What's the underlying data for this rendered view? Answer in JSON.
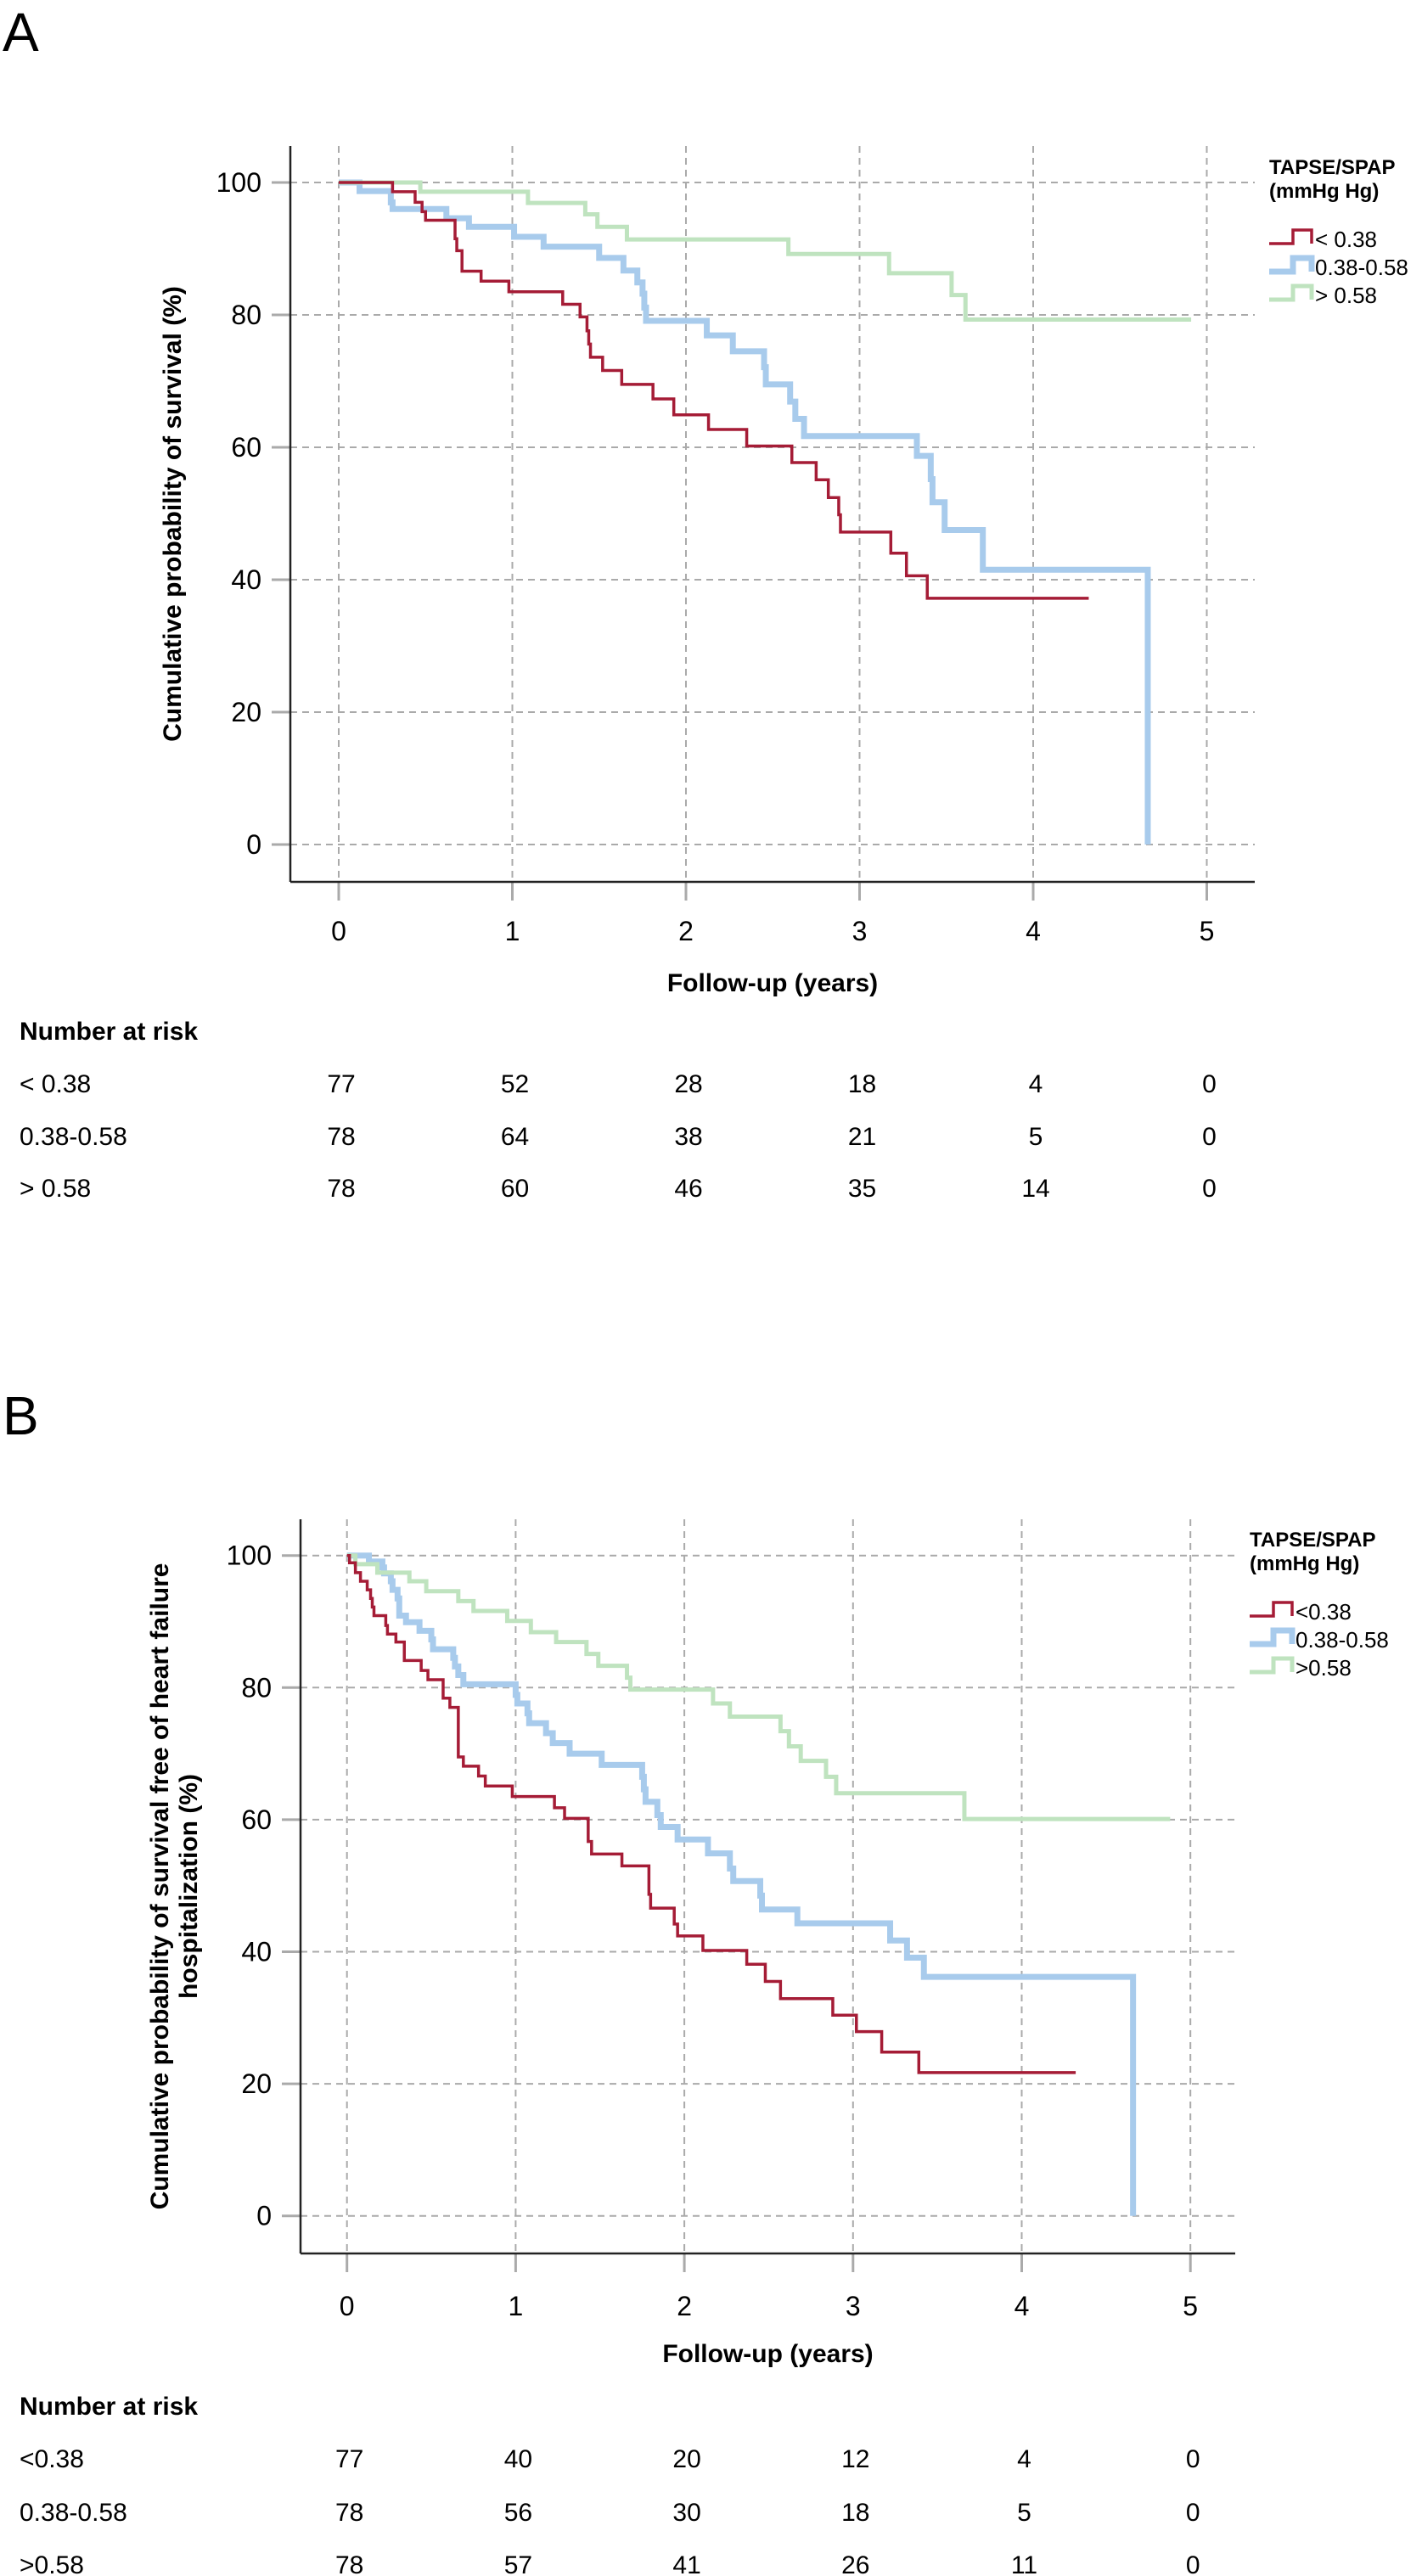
{
  "chart_data": [
    {
      "type": "line",
      "subtype": "kaplan-meier step",
      "panel_label": "A",
      "title": "",
      "xlabel": "Follow-up (years)",
      "ylabel": [
        "Cumulative probability of survival (%)"
      ],
      "xlim": [
        0,
        5
      ],
      "ylim": [
        0,
        100
      ],
      "xticks": [
        "0",
        "1",
        "2",
        "3",
        "4",
        "5"
      ],
      "yticks": [
        "0",
        "20",
        "40",
        "60",
        "80",
        "100"
      ],
      "grid": true,
      "legend": {
        "title": [
          "TAPSE/SPAP",
          "(mmHg Hg)"
        ],
        "placement": "right-top"
      },
      "series": [
        {
          "name": "< 0.38",
          "color": "#a51c36",
          "end": 4.32,
          "steps": [
            [
              0,
              100
            ],
            [
              0.31,
              98.6
            ],
            [
              0.44,
              97.0
            ],
            [
              0.48,
              95.6
            ],
            [
              0.5,
              94.3
            ],
            [
              0.67,
              91.5
            ],
            [
              0.68,
              89.7
            ],
            [
              0.71,
              86.6
            ],
            [
              0.82,
              85.1
            ],
            [
              0.98,
              83.5
            ],
            [
              1.29,
              81.6
            ],
            [
              1.39,
              79.7
            ],
            [
              1.43,
              77.6
            ],
            [
              1.44,
              75.6
            ],
            [
              1.45,
              73.6
            ],
            [
              1.52,
              71.6
            ],
            [
              1.63,
              69.5
            ],
            [
              1.81,
              67.3
            ],
            [
              1.93,
              64.9
            ],
            [
              2.13,
              62.7
            ],
            [
              2.35,
              60.2
            ],
            [
              2.61,
              57.7
            ],
            [
              2.75,
              55.1
            ],
            [
              2.82,
              52.4
            ],
            [
              2.88,
              49.8
            ],
            [
              2.89,
              47.2
            ],
            [
              3.18,
              44.0
            ],
            [
              3.27,
              40.6
            ],
            [
              3.39,
              37.2
            ]
          ]
        },
        {
          "name": "0.38-0.58",
          "color": "#a8cbec",
          "end": 4.66,
          "steps": [
            [
              0,
              100
            ],
            [
              0.12,
              98.7
            ],
            [
              0.3,
              97.0
            ],
            [
              0.31,
              96.0
            ],
            [
              0.62,
              94.6
            ],
            [
              0.75,
              93.3
            ],
            [
              1.01,
              91.8
            ],
            [
              1.18,
              90.3
            ],
            [
              1.5,
              88.6
            ],
            [
              1.64,
              86.7
            ],
            [
              1.72,
              84.9
            ],
            [
              1.75,
              83.2
            ],
            [
              1.76,
              81.1
            ],
            [
              1.77,
              79.1
            ],
            [
              2.12,
              76.9
            ],
            [
              2.27,
              74.5
            ],
            [
              2.45,
              72.1
            ],
            [
              2.46,
              69.5
            ],
            [
              2.6,
              66.9
            ],
            [
              2.63,
              64.3
            ],
            [
              2.68,
              61.7
            ],
            [
              3.33,
              58.7
            ],
            [
              3.41,
              55.2
            ],
            [
              3.42,
              51.7
            ],
            [
              3.49,
              47.5
            ],
            [
              3.71,
              41.5
            ],
            [
              4.66,
              0
            ]
          ]
        },
        {
          "name": "> 0.58",
          "color": "#bfe3bf",
          "end": 4.91,
          "steps": [
            [
              0,
              100
            ],
            [
              0.47,
              98.6
            ],
            [
              1.09,
              96.9
            ],
            [
              1.42,
              95.2
            ],
            [
              1.49,
              93.3
            ],
            [
              1.66,
              91.4
            ],
            [
              2.59,
              89.2
            ],
            [
              3.17,
              86.3
            ],
            [
              3.53,
              83.0
            ],
            [
              3.61,
              79.3
            ]
          ]
        }
      ],
      "risk_table": {
        "title": "Number at risk",
        "rows": [
          {
            "label": "< 0.38",
            "values": [
              "77",
              "52",
              "28",
              "18",
              "4",
              "0"
            ]
          },
          {
            "label": "0.38-0.58",
            "values": [
              "78",
              "64",
              "38",
              "21",
              "5",
              "0"
            ]
          },
          {
            "label": "> 0.58",
            "values": [
              "78",
              "60",
              "46",
              "35",
              "14",
              "0"
            ]
          }
        ]
      }
    },
    {
      "type": "line",
      "subtype": "kaplan-meier step",
      "panel_label": "B",
      "title": "",
      "xlabel": "Follow-up (years)",
      "ylabel": [
        "Cumulative probability of survival free of heart failure",
        "hospitalization (%)"
      ],
      "xlim": [
        0,
        5
      ],
      "ylim": [
        0,
        100
      ],
      "xticks": [
        "0",
        "1",
        "2",
        "3",
        "4",
        "5"
      ],
      "yticks": [
        "0",
        "20",
        "40",
        "60",
        "80",
        "100"
      ],
      "grid": true,
      "legend": {
        "title": [
          "TAPSE/SPAP",
          "(mmHg Hg)"
        ],
        "placement": "right-top"
      },
      "series": [
        {
          "name": "<0.38",
          "color": "#a51c36",
          "end": 4.32,
          "steps": [
            [
              0,
              100
            ],
            [
              0.015,
              98.9
            ],
            [
              0.05,
              97.4
            ],
            [
              0.08,
              96.1
            ],
            [
              0.12,
              94.8
            ],
            [
              0.14,
              93.5
            ],
            [
              0.15,
              92.2
            ],
            [
              0.16,
              90.9
            ],
            [
              0.23,
              89.4
            ],
            [
              0.24,
              88.1
            ],
            [
              0.29,
              86.9
            ],
            [
              0.34,
              84.1
            ],
            [
              0.44,
              82.6
            ],
            [
              0.48,
              81.2
            ],
            [
              0.57,
              78.4
            ],
            [
              0.61,
              77.0
            ],
            [
              0.66,
              69.5
            ],
            [
              0.69,
              68.1
            ],
            [
              0.78,
              66.6
            ],
            [
              0.82,
              65.1
            ],
            [
              0.98,
              63.5
            ],
            [
              1.23,
              61.8
            ],
            [
              1.29,
              60.2
            ],
            [
              1.43,
              56.7
            ],
            [
              1.45,
              54.8
            ],
            [
              1.63,
              53.0
            ],
            [
              1.79,
              48.7
            ],
            [
              1.8,
              46.6
            ],
            [
              1.94,
              44.2
            ],
            [
              1.96,
              42.4
            ],
            [
              2.11,
              40.2
            ],
            [
              2.37,
              38.1
            ],
            [
              2.48,
              35.5
            ],
            [
              2.57,
              32.9
            ],
            [
              2.88,
              30.4
            ],
            [
              3.02,
              27.9
            ],
            [
              3.17,
              24.8
            ],
            [
              3.39,
              21.7
            ]
          ]
        },
        {
          "name": "0.38-0.58",
          "color": "#a8cbec",
          "end": 4.66,
          "steps": [
            [
              0,
              100
            ],
            [
              0.13,
              99.1
            ],
            [
              0.21,
              98.2
            ],
            [
              0.22,
              97.3
            ],
            [
              0.26,
              96.1
            ],
            [
              0.27,
              94.8
            ],
            [
              0.3,
              93.5
            ],
            [
              0.31,
              90.9
            ],
            [
              0.35,
              89.9
            ],
            [
              0.43,
              88.6
            ],
            [
              0.5,
              87.3
            ],
            [
              0.51,
              85.8
            ],
            [
              0.63,
              84.5
            ],
            [
              0.64,
              83.2
            ],
            [
              0.66,
              81.9
            ],
            [
              0.69,
              80.5
            ],
            [
              1.0,
              78.9
            ],
            [
              1.01,
              77.6
            ],
            [
              1.07,
              76.1
            ],
            [
              1.08,
              74.6
            ],
            [
              1.18,
              73.1
            ],
            [
              1.22,
              71.6
            ],
            [
              1.32,
              70.0
            ],
            [
              1.51,
              68.3
            ],
            [
              1.75,
              66.5
            ],
            [
              1.76,
              64.6
            ],
            [
              1.77,
              62.7
            ],
            [
              1.84,
              60.7
            ],
            [
              1.86,
              58.9
            ],
            [
              1.96,
              57.0
            ],
            [
              2.14,
              54.9
            ],
            [
              2.27,
              52.6
            ],
            [
              2.29,
              50.7
            ],
            [
              2.45,
              48.5
            ],
            [
              2.46,
              46.4
            ],
            [
              2.67,
              44.3
            ],
            [
              3.22,
              41.7
            ],
            [
              3.32,
              39.1
            ],
            [
              3.42,
              36.2
            ],
            [
              4.66,
              0
            ]
          ]
        },
        {
          "name": ">0.58",
          "color": "#bfe3bf",
          "end": 4.88,
          "steps": [
            [
              0,
              100
            ],
            [
              0.05,
              98.7
            ],
            [
              0.18,
              97.4
            ],
            [
              0.37,
              96.1
            ],
            [
              0.47,
              94.6
            ],
            [
              0.66,
              93.1
            ],
            [
              0.75,
              91.6
            ],
            [
              0.95,
              90.1
            ],
            [
              1.09,
              88.4
            ],
            [
              1.24,
              86.9
            ],
            [
              1.42,
              85.1
            ],
            [
              1.49,
              83.3
            ],
            [
              1.66,
              81.5
            ],
            [
              1.68,
              79.7
            ],
            [
              2.17,
              77.6
            ],
            [
              2.27,
              75.6
            ],
            [
              2.57,
              73.4
            ],
            [
              2.62,
              71.1
            ],
            [
              2.69,
              68.9
            ],
            [
              2.84,
              66.5
            ],
            [
              2.9,
              64.0
            ],
            [
              3.66,
              60.1
            ]
          ]
        }
      ],
      "risk_table": {
        "title": "Number at risk",
        "rows": [
          {
            "label": "<0.38",
            "values": [
              "77",
              "40",
              "20",
              "12",
              "4",
              "0"
            ]
          },
          {
            "label": "0.38-0.58",
            "values": [
              "78",
              "56",
              "30",
              "18",
              "5",
              "0"
            ]
          },
          {
            "label": ">0.58",
            "values": [
              "78",
              "57",
              "41",
              "26",
              "11",
              "0"
            ]
          }
        ]
      }
    }
  ]
}
